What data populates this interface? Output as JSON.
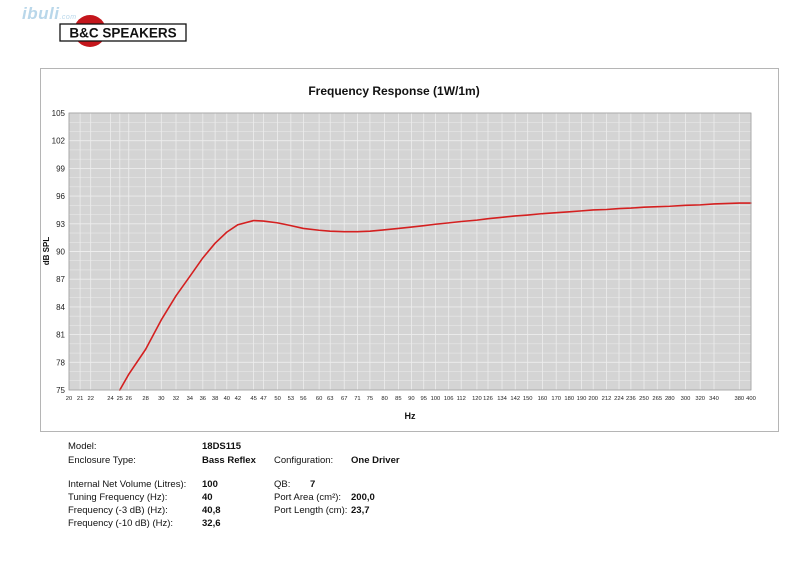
{
  "header": {
    "watermark_text": "ibuli",
    "watermark_suffix": ".com",
    "brand_name": "B&C SPEAKERS"
  },
  "colors": {
    "plot_bg": "#d4d4d4",
    "grid": "#ededed",
    "curve": "#d42020",
    "logo_red": "#c4161c"
  },
  "chart_data": {
    "type": "line",
    "title": "Frequency Response (1W/1m)",
    "xlabel": "Hz",
    "ylabel": "dB SPL",
    "x_tick_labels": [
      "20",
      "21",
      "22",
      "24",
      "25",
      "26",
      "28",
      "30",
      "32",
      "34",
      "36",
      "38",
      "40",
      "42",
      "45",
      "47",
      "50",
      "53",
      "56",
      "60",
      "63",
      "67",
      "71",
      "75",
      "80",
      "85",
      "90",
      "95",
      "100",
      "106",
      "112",
      "120",
      "126",
      "134",
      "142",
      "150",
      "160",
      "170",
      "180",
      "190",
      "200",
      "212",
      "224",
      "236",
      "250",
      "265",
      "280",
      "300",
      "320",
      "340",
      "380",
      "400"
    ],
    "y_ticks": [
      75,
      78,
      81,
      84,
      87,
      90,
      93,
      96,
      99,
      102,
      105
    ],
    "ylim": [
      75,
      105
    ],
    "xlim": [
      20,
      400
    ],
    "x_scale": "log",
    "grid": true,
    "series": [
      {
        "x": [
          25,
          26,
          28,
          30,
          32,
          34,
          36,
          38,
          40,
          42,
          45,
          47,
          50,
          53,
          56,
          60,
          63,
          67,
          71,
          75,
          80,
          85,
          90,
          95,
          100,
          106,
          112,
          120,
          126,
          134,
          142,
          150,
          160,
          170,
          180,
          190,
          200,
          212,
          224,
          236,
          250,
          265,
          280,
          300,
          320,
          340,
          380,
          400
        ],
        "y": [
          75.0,
          76.7,
          79.4,
          82.6,
          85.2,
          87.3,
          89.3,
          90.9,
          92.1,
          92.9,
          93.35,
          93.3,
          93.1,
          92.8,
          92.5,
          92.3,
          92.2,
          92.15,
          92.15,
          92.2,
          92.35,
          92.5,
          92.65,
          92.8,
          92.95,
          93.1,
          93.25,
          93.4,
          93.55,
          93.7,
          93.85,
          93.95,
          94.1,
          94.2,
          94.3,
          94.4,
          94.5,
          94.55,
          94.65,
          94.7,
          94.8,
          94.85,
          94.9,
          95.0,
          95.05,
          95.15,
          95.25,
          95.25
        ]
      }
    ]
  },
  "specs": {
    "model_label": "Model:",
    "model_value": "18DS115",
    "enclosure_label": "Enclosure Type:",
    "enclosure_value": "Bass Reflex",
    "configuration_label": "Configuration:",
    "configuration_value": "One Driver",
    "volume_label": "Internal Net Volume (Litres):",
    "volume_value": "100",
    "qb_label": "QB:",
    "qb_value": "7",
    "tuning_label": "Tuning Frequency (Hz):",
    "tuning_value": "40",
    "port_area_label": "Port Area (cm²):",
    "port_area_value": "200,0",
    "f3_label": "Frequency (-3 dB) (Hz):",
    "f3_value": "40,8",
    "port_length_label": "Port Length (cm):",
    "port_length_value": "23,7",
    "f10_label": "Frequency (-10 dB) (Hz):",
    "f10_value": "32,6"
  }
}
